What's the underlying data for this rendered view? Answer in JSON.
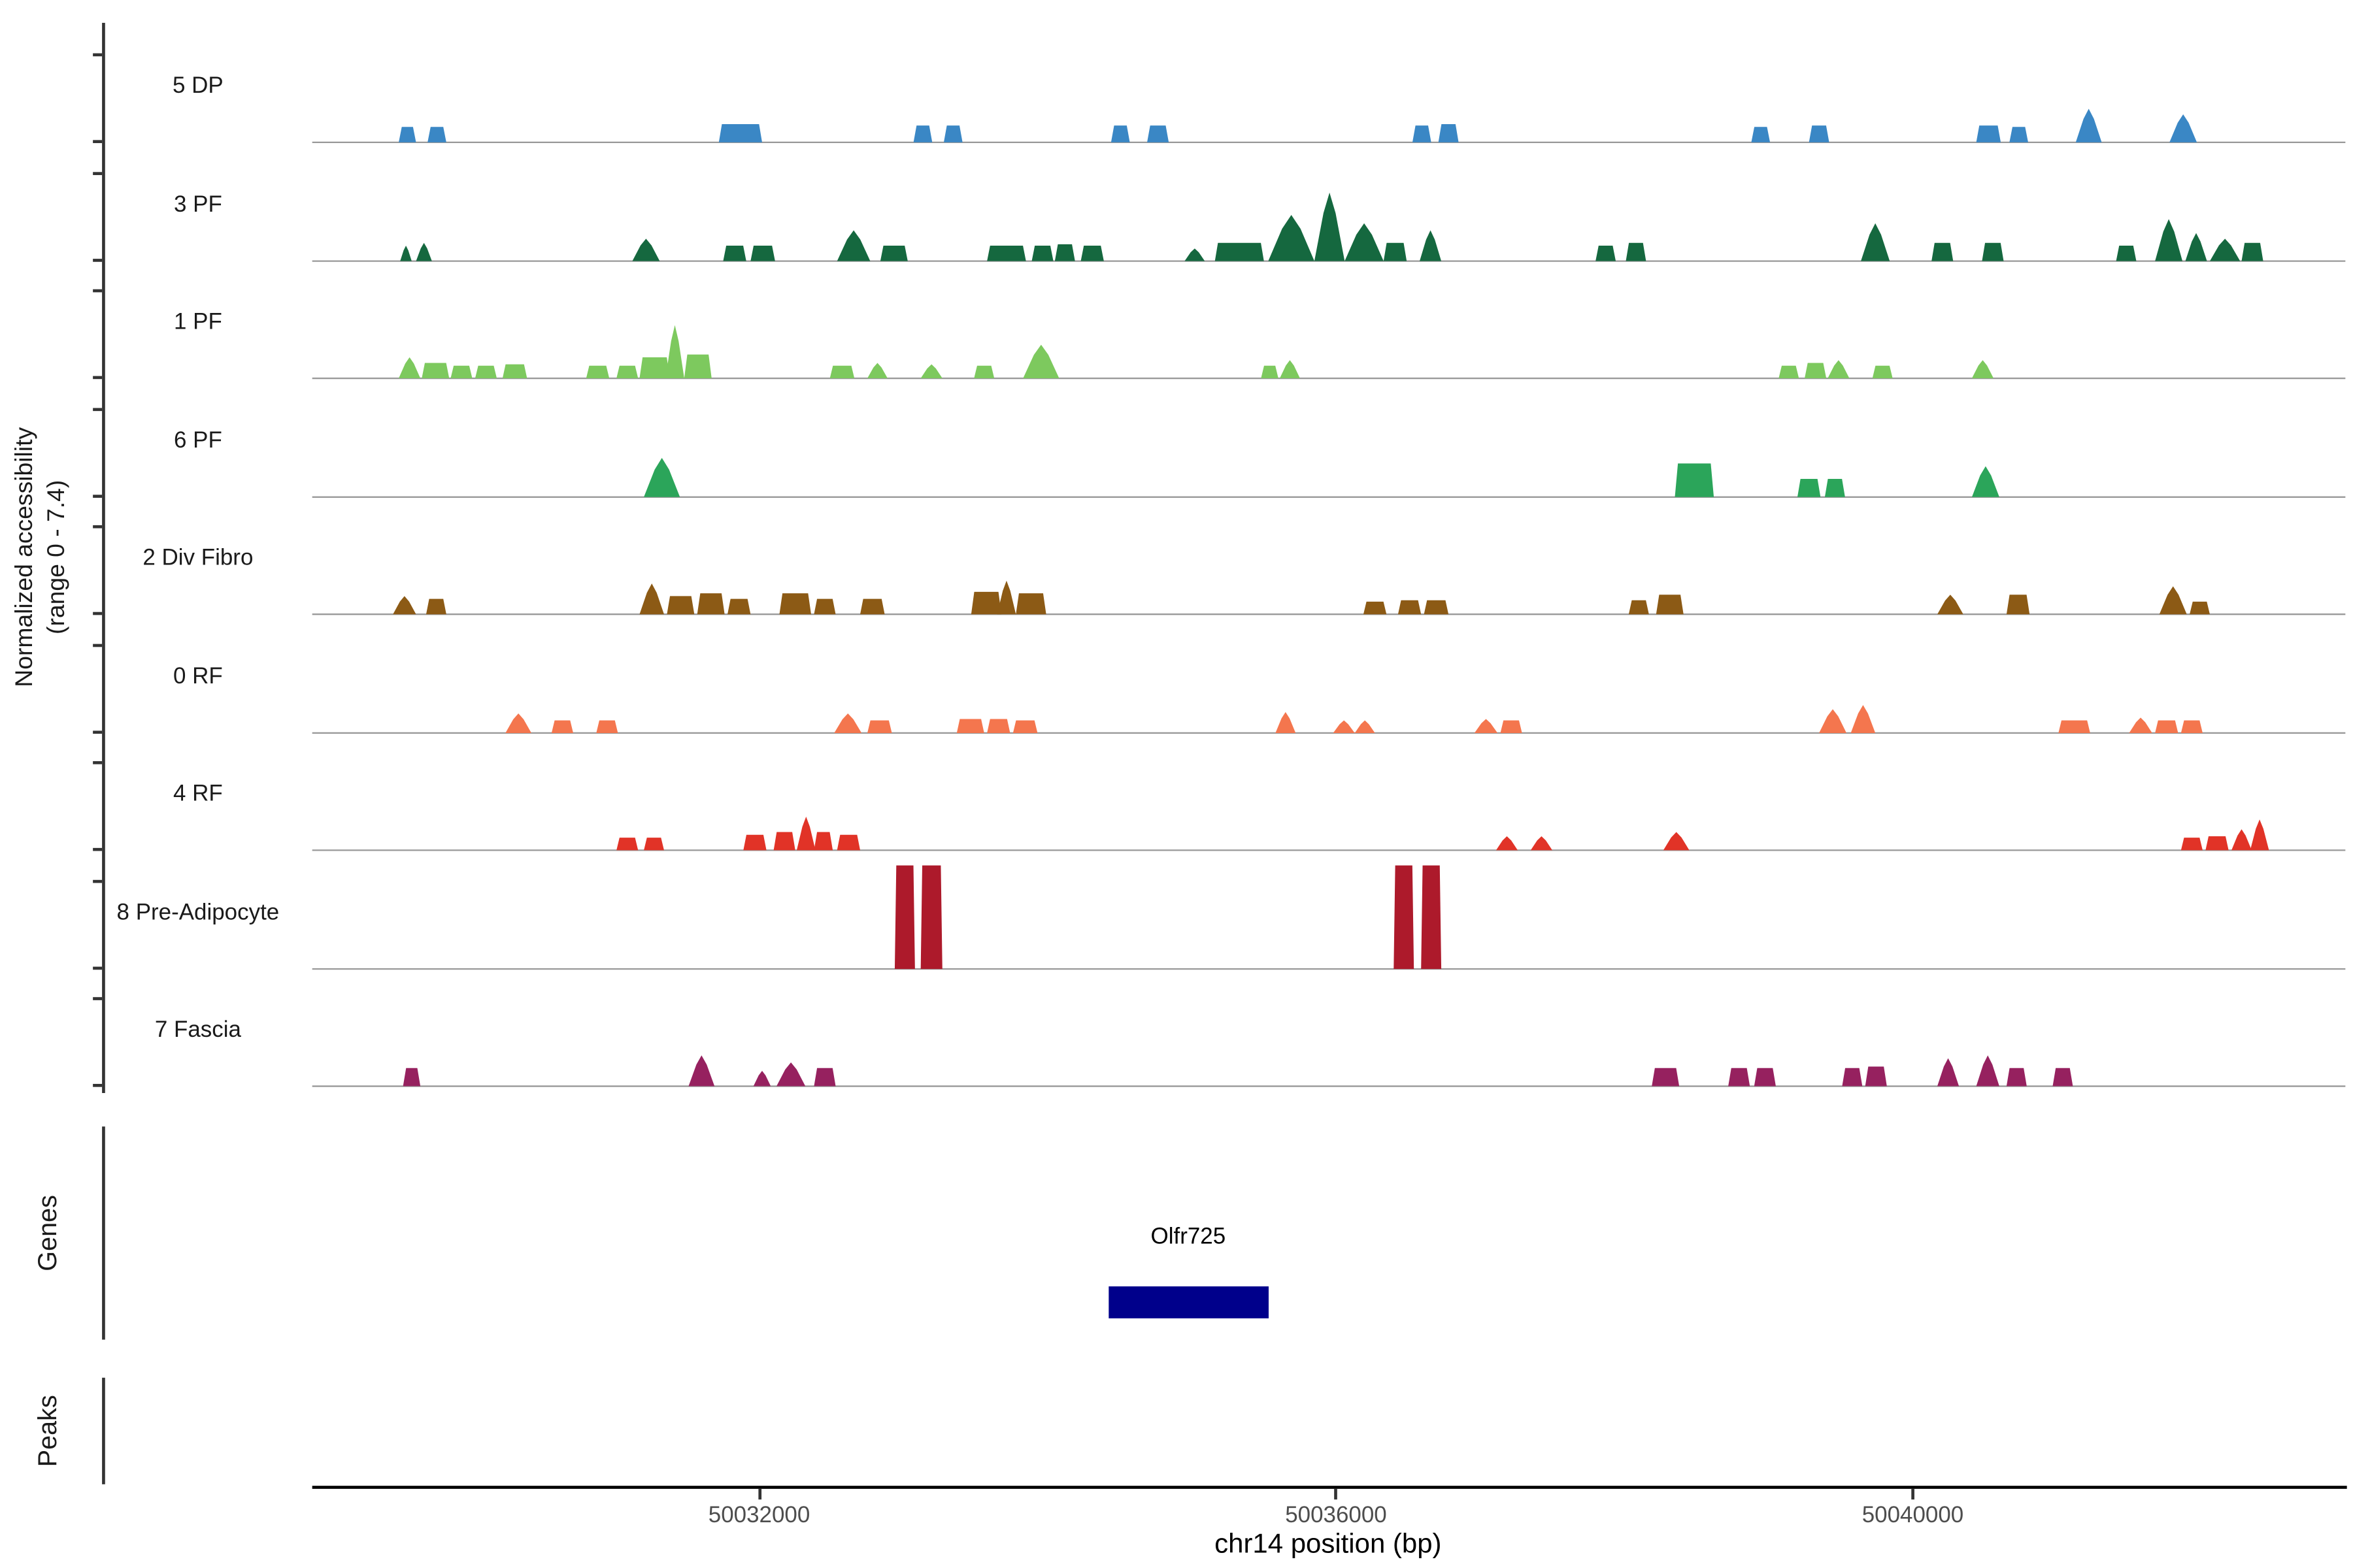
{
  "y_axis": {
    "title_line1": "Normalized accessibility",
    "title_line2": "(range 0 - 7.4)"
  },
  "sections": {
    "genes_label": "Genes",
    "peaks_label": "Peaks"
  },
  "gene_label": "Olfr725",
  "colors": {
    "baseline": "#999999",
    "axis": "#333333",
    "x_axis_line": "#000000",
    "tick_label": "#4d4d4d"
  },
  "chart_data": {
    "type": "area",
    "subtype": "genome-accessibility-tracks",
    "title": "",
    "xlabel": "chr14 position (bp)",
    "ylabel": "Normalized accessibility (range 0 - 7.4)",
    "ylim": [
      0,
      7.4
    ],
    "grid": false,
    "region": {
      "chrom": "chr14",
      "start": 50028900,
      "end": 50043000
    },
    "x_ticks": [
      50032000,
      50036000,
      50040000
    ],
    "peak_shape_legend": {
      "r": "flat-top block",
      "t": "pointed peak",
      "b": "full-height bar"
    },
    "tracks": [
      {
        "label": "5 DP",
        "color": "#3a87c5",
        "peaks": [
          [
            50029500,
            120,
            1.1,
            "r"
          ],
          [
            50029700,
            130,
            1.1,
            "r"
          ],
          [
            50031720,
            300,
            1.3,
            "r"
          ],
          [
            50033070,
            130,
            1.2,
            "r"
          ],
          [
            50033280,
            130,
            1.2,
            "r"
          ],
          [
            50034440,
            130,
            1.2,
            "r"
          ],
          [
            50034690,
            150,
            1.2,
            "r"
          ],
          [
            50036530,
            130,
            1.2,
            "r"
          ],
          [
            50036710,
            140,
            1.3,
            "r"
          ],
          [
            50038880,
            130,
            1.1,
            "r"
          ],
          [
            50039280,
            140,
            1.2,
            "r"
          ],
          [
            50040440,
            170,
            1.2,
            "r"
          ],
          [
            50040670,
            130,
            1.1,
            "r"
          ],
          [
            50041130,
            180,
            2.4,
            "t"
          ],
          [
            50041780,
            190,
            2.0,
            "t"
          ]
        ]
      },
      {
        "label": "3 PF",
        "color": "#15683f",
        "peaks": [
          [
            50029510,
            80,
            1.1,
            "t"
          ],
          [
            50029620,
            110,
            1.3,
            "t"
          ],
          [
            50031120,
            190,
            1.6,
            "t"
          ],
          [
            50031750,
            160,
            1.1,
            "r"
          ],
          [
            50031940,
            170,
            1.1,
            "r"
          ],
          [
            50032540,
            230,
            2.2,
            "t"
          ],
          [
            50032840,
            190,
            1.1,
            "r"
          ],
          [
            50033580,
            270,
            1.1,
            "r"
          ],
          [
            50033890,
            150,
            1.1,
            "r"
          ],
          [
            50034050,
            140,
            1.2,
            "r"
          ],
          [
            50034230,
            160,
            1.1,
            "r"
          ],
          [
            50034950,
            140,
            0.9,
            "t"
          ],
          [
            50035160,
            340,
            1.3,
            "r"
          ],
          [
            50035530,
            320,
            3.3,
            "t"
          ],
          [
            50035850,
            210,
            4.9,
            "t"
          ],
          [
            50036060,
            270,
            2.7,
            "t"
          ],
          [
            50036330,
            160,
            1.3,
            "r"
          ],
          [
            50036580,
            150,
            2.2,
            "t"
          ],
          [
            50037800,
            140,
            1.1,
            "r"
          ],
          [
            50038010,
            140,
            1.3,
            "r"
          ],
          [
            50039640,
            200,
            2.7,
            "t"
          ],
          [
            50040130,
            150,
            1.3,
            "r"
          ],
          [
            50040480,
            150,
            1.3,
            "r"
          ],
          [
            50041410,
            140,
            1.1,
            "r"
          ],
          [
            50041680,
            190,
            3.0,
            "t"
          ],
          [
            50041890,
            150,
            2.0,
            "t"
          ],
          [
            50042060,
            210,
            1.6,
            "t"
          ],
          [
            50042280,
            150,
            1.3,
            "r"
          ]
        ]
      },
      {
        "label": "1 PF",
        "color": "#7dc95e",
        "peaks": [
          [
            50029500,
            150,
            1.5,
            "t"
          ],
          [
            50029660,
            190,
            1.1,
            "r"
          ],
          [
            50029860,
            150,
            0.9,
            "r"
          ],
          [
            50030030,
            150,
            0.9,
            "r"
          ],
          [
            50030220,
            170,
            1.0,
            "r"
          ],
          [
            50030800,
            160,
            0.9,
            "r"
          ],
          [
            50031010,
            150,
            0.9,
            "r"
          ],
          [
            50031170,
            210,
            1.5,
            "r"
          ],
          [
            50031350,
            130,
            3.8,
            "t"
          ],
          [
            50031480,
            190,
            1.7,
            "r"
          ],
          [
            50032490,
            170,
            0.9,
            "r"
          ],
          [
            50032750,
            140,
            1.1,
            "t"
          ],
          [
            50033120,
            150,
            1.0,
            "t"
          ],
          [
            50033490,
            140,
            0.9,
            "r"
          ],
          [
            50033830,
            250,
            2.4,
            "t"
          ],
          [
            50035480,
            120,
            0.9,
            "r"
          ],
          [
            50035610,
            140,
            1.3,
            "t"
          ],
          [
            50039070,
            140,
            0.9,
            "r"
          ],
          [
            50039250,
            150,
            1.1,
            "r"
          ],
          [
            50039410,
            150,
            1.3,
            "t"
          ],
          [
            50039720,
            140,
            0.9,
            "r"
          ],
          [
            50040410,
            150,
            1.3,
            "t"
          ]
        ]
      },
      {
        "label": "6 PF",
        "color": "#2ba55a",
        "peaks": [
          [
            50031200,
            250,
            2.8,
            "t"
          ],
          [
            50038350,
            270,
            2.4,
            "r"
          ],
          [
            50039200,
            160,
            1.3,
            "r"
          ],
          [
            50039390,
            140,
            1.3,
            "r"
          ],
          [
            50040410,
            190,
            2.2,
            "t"
          ]
        ]
      },
      {
        "label": "2 Div Fibro",
        "color": "#8c5a15",
        "peaks": [
          [
            50029460,
            160,
            1.3,
            "t"
          ],
          [
            50029690,
            140,
            1.1,
            "r"
          ],
          [
            50031170,
            170,
            2.2,
            "t"
          ],
          [
            50031360,
            190,
            1.3,
            "r"
          ],
          [
            50031570,
            190,
            1.5,
            "r"
          ],
          [
            50031780,
            160,
            1.1,
            "r"
          ],
          [
            50032140,
            220,
            1.5,
            "r"
          ],
          [
            50032380,
            150,
            1.1,
            "r"
          ],
          [
            50032700,
            170,
            1.1,
            "r"
          ],
          [
            50033470,
            210,
            1.6,
            "r"
          ],
          [
            50033650,
            130,
            2.4,
            "t"
          ],
          [
            50033780,
            210,
            1.5,
            "r"
          ],
          [
            50036190,
            160,
            0.9,
            "r"
          ],
          [
            50036430,
            160,
            1.0,
            "r"
          ],
          [
            50036610,
            170,
            1.0,
            "r"
          ],
          [
            50038030,
            140,
            1.0,
            "r"
          ],
          [
            50038220,
            190,
            1.4,
            "r"
          ],
          [
            50040170,
            180,
            1.4,
            "t"
          ],
          [
            50040650,
            160,
            1.4,
            "r"
          ],
          [
            50041710,
            190,
            2.0,
            "t"
          ],
          [
            50041920,
            140,
            0.9,
            "r"
          ]
        ]
      },
      {
        "label": "0 RF",
        "color": "#f4764e",
        "peaks": [
          [
            50030240,
            180,
            1.4,
            "t"
          ],
          [
            50030560,
            150,
            0.9,
            "r"
          ],
          [
            50030870,
            150,
            0.9,
            "r"
          ],
          [
            50032520,
            190,
            1.4,
            "t"
          ],
          [
            50032750,
            170,
            0.9,
            "r"
          ],
          [
            50033370,
            190,
            1.0,
            "r"
          ],
          [
            50033580,
            160,
            1.0,
            "r"
          ],
          [
            50033760,
            170,
            0.9,
            "r"
          ],
          [
            50035580,
            140,
            1.5,
            "t"
          ],
          [
            50035980,
            150,
            0.9,
            "t"
          ],
          [
            50036130,
            140,
            0.9,
            "t"
          ],
          [
            50036960,
            160,
            1.0,
            "t"
          ],
          [
            50037140,
            150,
            0.9,
            "r"
          ],
          [
            50039350,
            190,
            1.7,
            "t"
          ],
          [
            50039570,
            170,
            2.0,
            "t"
          ],
          [
            50041010,
            220,
            0.9,
            "r"
          ],
          [
            50041500,
            160,
            1.1,
            "t"
          ],
          [
            50041680,
            160,
            0.9,
            "r"
          ],
          [
            50041860,
            150,
            0.9,
            "r"
          ]
        ]
      },
      {
        "label": "4 RF",
        "color": "#e13327",
        "peaks": [
          [
            50031010,
            150,
            0.9,
            "r"
          ],
          [
            50031200,
            140,
            0.9,
            "r"
          ],
          [
            50031890,
            160,
            1.1,
            "r"
          ],
          [
            50032100,
            150,
            1.3,
            "r"
          ],
          [
            50032260,
            130,
            2.4,
            "t"
          ],
          [
            50032380,
            130,
            1.3,
            "r"
          ],
          [
            50032540,
            160,
            1.1,
            "r"
          ],
          [
            50037110,
            150,
            1.0,
            "t"
          ],
          [
            50037350,
            150,
            1.0,
            "t"
          ],
          [
            50038270,
            180,
            1.3,
            "t"
          ],
          [
            50041860,
            150,
            0.9,
            "r"
          ],
          [
            50042030,
            160,
            1.0,
            "r"
          ],
          [
            50042210,
            140,
            1.5,
            "t"
          ],
          [
            50042340,
            130,
            2.2,
            "t"
          ]
        ]
      },
      {
        "label": "8 Pre-Adipocyte",
        "color": "#ad1a2b",
        "peaks": [
          [
            50032940,
            140,
            7.4,
            "b"
          ],
          [
            50033120,
            150,
            7.4,
            "b"
          ],
          [
            50036400,
            140,
            7.4,
            "b"
          ],
          [
            50036590,
            140,
            7.4,
            "b"
          ]
        ]
      },
      {
        "label": "7 Fascia",
        "color": "#96215f",
        "peaks": [
          [
            50029530,
            120,
            1.3,
            "r"
          ],
          [
            50031510,
            180,
            2.2,
            "t"
          ],
          [
            50031960,
            120,
            1.1,
            "t"
          ],
          [
            50032120,
            200,
            1.7,
            "t"
          ],
          [
            50032380,
            150,
            1.3,
            "r"
          ],
          [
            50038190,
            190,
            1.3,
            "r"
          ],
          [
            50038720,
            150,
            1.3,
            "r"
          ],
          [
            50038900,
            150,
            1.3,
            "r"
          ],
          [
            50039510,
            140,
            1.3,
            "r"
          ],
          [
            50039670,
            150,
            1.4,
            "r"
          ],
          [
            50040170,
            150,
            2.0,
            "t"
          ],
          [
            50040440,
            160,
            2.2,
            "t"
          ],
          [
            50040650,
            140,
            1.3,
            "r"
          ],
          [
            50040970,
            140,
            1.3,
            "r"
          ]
        ]
      }
    ],
    "genes": [
      {
        "name": "Olfr725",
        "start": 50034420,
        "end": 50035530,
        "color": "#00008B"
      }
    ],
    "peaks_track": []
  }
}
